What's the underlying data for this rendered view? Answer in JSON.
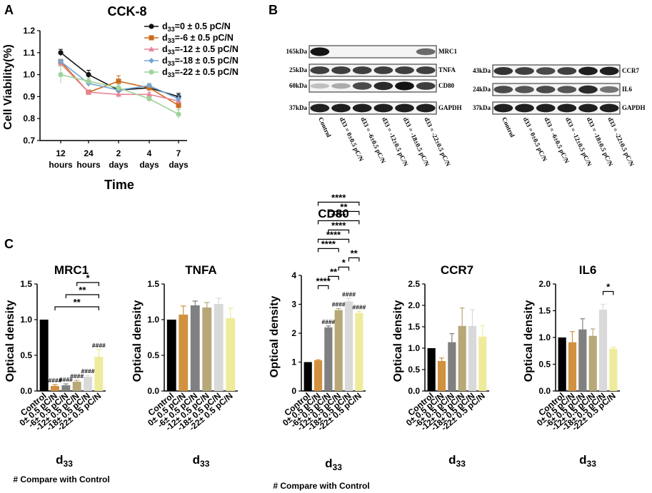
{
  "panels": {
    "a": "A",
    "b": "B",
    "c": "C"
  },
  "panel_a": {
    "chart_data": {
      "type": "line",
      "title": "CCK-8",
      "ylabel": "Cell Viability(%)",
      "xlabel": "Time",
      "x_labels": [
        [
          "12",
          "hours"
        ],
        [
          "24",
          "hours"
        ],
        [
          "2",
          "days"
        ],
        [
          "4",
          "days"
        ],
        [
          "7",
          "days"
        ]
      ],
      "ylim": [
        0.7,
        1.2
      ],
      "yticks": [
        "0.7",
        "0.8",
        "0.9",
        "1.0",
        "1.1",
        "1.2"
      ],
      "series": [
        {
          "name": "d33=0 ± 0.5 pC/N",
          "sub_value": "=0 ± 0.5 pC/N",
          "color": "#111111",
          "marker": "circle",
          "values": [
            1.1,
            1.0,
            0.93,
            0.94,
            0.9
          ],
          "err": [
            0.015,
            0.02,
            0.015,
            0.015,
            0.015
          ]
        },
        {
          "name": "d33=-6 ± 0.5 pC/N",
          "sub_value": "=-6 ± 0.5 pC/N",
          "color": "#cc6a1c",
          "marker": "square",
          "values": [
            1.06,
            0.92,
            0.97,
            0.94,
            0.86
          ],
          "err": [
            0.01,
            0.01,
            0.025,
            0.015,
            0.02
          ]
        },
        {
          "name": "d33=-12 ± 0.5 pC/N",
          "sub_value": "=-12 ± 0.5 pC/N",
          "color": "#e8849a",
          "marker": "triangle",
          "values": [
            1.05,
            0.92,
            0.91,
            0.91,
            0.88
          ],
          "err": [
            0.01,
            0.01,
            0.015,
            0.01,
            0.015
          ]
        },
        {
          "name": "d33=-18 ± 0.5 pC/N",
          "sub_value": "=-18 ± 0.5 pC/N",
          "color": "#74a6d4",
          "marker": "diamond",
          "values": [
            1.06,
            0.96,
            0.93,
            0.95,
            0.89
          ],
          "err": [
            0.01,
            0.015,
            0.015,
            0.01,
            0.015
          ]
        },
        {
          "name": "d33=-22 ± 0.5 pC/N",
          "sub_value": "=-22 ± 0.5 pC/N",
          "color": "#9ed49a",
          "marker": "circle",
          "values": [
            1.0,
            0.97,
            0.94,
            0.89,
            0.82
          ],
          "err": [
            0.04,
            0.015,
            0.015,
            0.01,
            0.02
          ]
        }
      ],
      "d_symbol": "d",
      "d_sub": "33"
    }
  },
  "panel_b": {
    "left_bands": [
      {
        "kda": "165kDa",
        "name": "MRC1"
      },
      {
        "kda": "25kDa",
        "name": "TNFA"
      },
      {
        "kda": "60kDa",
        "name": "CD80"
      },
      {
        "kda": "37kDa",
        "name": "GAPDH"
      }
    ],
    "right_bands": [
      {
        "kda": "43kDa",
        "name": "CCR7"
      },
      {
        "kda": "24kDa",
        "name": "IL6"
      },
      {
        "kda": "37kDa",
        "name": "GAPDH"
      }
    ],
    "lane_labels": [
      "Control",
      "d33 = 0±0.5 pC/N",
      "d33 = -6±0.5 pC/N",
      "d33 = -12±0.5 pC/N",
      "d33 = -18±0.5 pC/N",
      "d33 = -22±0.5 pC/N"
    ]
  },
  "panel_c": {
    "ylabel": "Optical density",
    "xlabel_main": "d",
    "xlabel_sub": "33",
    "categories": [
      "Control",
      "0± 0.5 pC/N",
      "-6± 0.5 pC/N",
      "-12± 0.5 pC/N",
      "-18± 0.5 pC/N",
      "-22± 0.5 pC/N"
    ],
    "bar_colors": [
      "#000000",
      "#d1913f",
      "#808080",
      "#b8a878",
      "#d9d9d9",
      "#eeeb9c"
    ],
    "footnote_left": "# Compare with Control",
    "footnote_center": "# Compare with Control",
    "chart_data": [
      {
        "type": "bar",
        "title": "MRC1",
        "values": [
          1.0,
          0.07,
          0.08,
          0.13,
          0.2,
          0.48
        ],
        "err": [
          0,
          0.02,
          0.02,
          0.02,
          0.02,
          0.1
        ],
        "ylim": [
          0,
          1.5
        ],
        "yticks": [
          "0.0",
          "0.5",
          "1.0",
          "1.5"
        ],
        "hash_labels": [
          null,
          "####",
          "####",
          "####",
          "####",
          "####"
        ],
        "brackets": [
          {
            "from": 1,
            "to": 5,
            "label": "**"
          },
          {
            "from": 2,
            "to": 5,
            "label": "**"
          },
          {
            "from": 3,
            "to": 5,
            "label": "*"
          }
        ]
      },
      {
        "type": "bar",
        "title": "TNFA",
        "values": [
          1.0,
          1.07,
          1.2,
          1.17,
          1.22,
          1.02
        ],
        "err": [
          0,
          0.12,
          0.06,
          0.07,
          0.08,
          0.14
        ],
        "ylim": [
          0,
          1.5
        ],
        "yticks": [
          "0.0",
          "0.5",
          "1.0",
          "1.5"
        ],
        "hash_labels": [],
        "brackets": []
      },
      {
        "type": "bar",
        "title": "CD80",
        "values": [
          1.0,
          1.06,
          2.2,
          2.8,
          3.1,
          2.7
        ],
        "err": [
          0,
          0.02,
          0.05,
          0.05,
          0.1,
          0.05
        ],
        "ylim": [
          0,
          4
        ],
        "yticks": [
          "0",
          "1",
          "2",
          "3",
          "4"
        ],
        "hash_labels": [
          null,
          null,
          "####",
          "####",
          "####",
          "####"
        ],
        "brackets": [
          {
            "from": 1,
            "to": 2,
            "label": "****"
          },
          {
            "from": 2,
            "to": 3,
            "label": "**"
          },
          {
            "from": 3,
            "to": 4,
            "label": "*"
          },
          {
            "from": 4,
            "to": 5,
            "label": "**"
          },
          {
            "from": 1,
            "to": 3,
            "label": "****"
          },
          {
            "from": 1,
            "to": 4,
            "label": "****"
          },
          {
            "from": 2,
            "to": 4,
            "label": "****"
          },
          {
            "from": 1,
            "to": 5,
            "label": "****"
          },
          {
            "from": 2,
            "to": 5,
            "label": "**"
          },
          {
            "from": 1,
            "to": 5,
            "label": "****"
          }
        ]
      },
      {
        "type": "bar",
        "title": "CCR7",
        "values": [
          1.0,
          0.7,
          1.14,
          1.52,
          1.52,
          1.27
        ],
        "err": [
          0,
          0.07,
          0.2,
          0.42,
          0.38,
          0.26
        ],
        "ylim": [
          0,
          2.5
        ],
        "yticks": [
          "0.0",
          "0.5",
          "1.0",
          "1.5",
          "2.0",
          "2.5"
        ],
        "hash_labels": [],
        "brackets": []
      },
      {
        "type": "bar",
        "title": "IL6",
        "values": [
          1.0,
          0.91,
          1.15,
          1.03,
          1.52,
          0.79
        ],
        "err": [
          0,
          0.2,
          0.2,
          0.13,
          0.1,
          0.03
        ],
        "ylim": [
          0,
          2.0
        ],
        "yticks": [
          "0.0",
          "0.5",
          "1.0",
          "1.5",
          "2.0"
        ],
        "hash_labels": [],
        "brackets": [
          {
            "from": 4,
            "to": 5,
            "label": "*"
          }
        ]
      }
    ]
  }
}
